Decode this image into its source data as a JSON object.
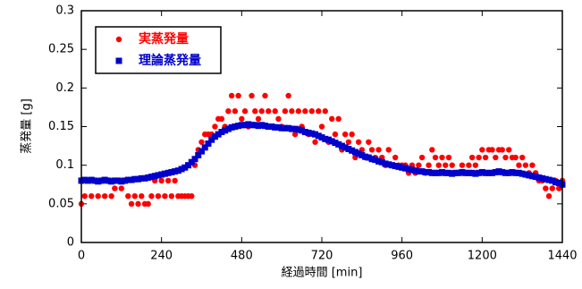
{
  "chart_data": {
    "type": "scatter",
    "x_label": "経過時間 [min]",
    "y_label": "蒸発量 [g]",
    "xlim": [
      0,
      1440
    ],
    "xticks": [
      0,
      240,
      480,
      720,
      960,
      1200,
      1440
    ],
    "ylim": [
      0,
      0.3
    ],
    "yticks": [
      0,
      0.05,
      0.1,
      0.15,
      0.2,
      0.25,
      0.3
    ],
    "legend": "upper left",
    "x": [
      0,
      10,
      20,
      30,
      40,
      50,
      60,
      70,
      80,
      90,
      100,
      110,
      120,
      130,
      140,
      150,
      160,
      170,
      180,
      190,
      200,
      210,
      220,
      230,
      240,
      250,
      260,
      270,
      280,
      290,
      300,
      310,
      320,
      330,
      340,
      350,
      360,
      370,
      380,
      390,
      400,
      410,
      420,
      430,
      440,
      450,
      460,
      470,
      480,
      490,
      500,
      510,
      520,
      530,
      540,
      550,
      560,
      570,
      580,
      590,
      600,
      610,
      620,
      630,
      640,
      650,
      660,
      670,
      680,
      690,
      700,
      710,
      720,
      730,
      740,
      750,
      760,
      770,
      780,
      790,
      800,
      810,
      820,
      830,
      840,
      850,
      860,
      870,
      880,
      890,
      900,
      910,
      920,
      930,
      940,
      950,
      960,
      970,
      980,
      990,
      1000,
      1010,
      1020,
      1030,
      1040,
      1050,
      1060,
      1070,
      1080,
      1090,
      1100,
      1110,
      1120,
      1130,
      1140,
      1150,
      1160,
      1170,
      1180,
      1190,
      1200,
      1210,
      1220,
      1230,
      1240,
      1250,
      1260,
      1270,
      1280,
      1290,
      1300,
      1310,
      1320,
      1330,
      1340,
      1350,
      1360,
      1370,
      1380,
      1390,
      1400,
      1410,
      1420,
      1430,
      1440
    ],
    "series": [
      {
        "name": "実蒸発量",
        "color": "#ff0000",
        "marker": "circle",
        "values": [
          0.05,
          0.06,
          0.08,
          0.06,
          0.08,
          0.06,
          0.08,
          0.06,
          0.08,
          0.06,
          0.07,
          0.08,
          0.07,
          0.08,
          0.06,
          0.05,
          0.06,
          0.05,
          0.06,
          0.05,
          0.05,
          0.06,
          0.08,
          0.06,
          0.08,
          0.06,
          0.08,
          0.06,
          0.08,
          0.06,
          0.06,
          0.06,
          0.06,
          0.06,
          0.1,
          0.12,
          0.13,
          0.14,
          0.14,
          0.14,
          0.15,
          0.16,
          0.16,
          0.15,
          0.17,
          0.19,
          0.17,
          0.19,
          0.16,
          0.17,
          0.15,
          0.19,
          0.17,
          0.16,
          0.17,
          0.19,
          0.17,
          0.15,
          0.17,
          0.16,
          0.15,
          0.17,
          0.19,
          0.17,
          0.14,
          0.17,
          0.15,
          0.17,
          0.14,
          0.17,
          0.13,
          0.17,
          0.15,
          0.17,
          0.13,
          0.16,
          0.14,
          0.16,
          0.12,
          0.14,
          0.13,
          0.14,
          0.11,
          0.13,
          0.12,
          0.11,
          0.13,
          0.12,
          0.11,
          0.12,
          0.11,
          0.1,
          0.12,
          0.1,
          0.11,
          0.1,
          0.1,
          0.1,
          0.09,
          0.1,
          0.09,
          0.1,
          0.11,
          0.09,
          0.1,
          0.12,
          0.11,
          0.1,
          0.11,
          0.1,
          0.11,
          0.1,
          0.09,
          0.09,
          0.1,
          0.09,
          0.1,
          0.11,
          0.1,
          0.11,
          0.12,
          0.11,
          0.12,
          0.12,
          0.11,
          0.12,
          0.12,
          0.11,
          0.12,
          0.11,
          0.11,
          0.1,
          0.11,
          0.1,
          0.09,
          0.1,
          0.09,
          0.08,
          0.08,
          0.07,
          0.06,
          0.07,
          0.08,
          0.07,
          0.08
        ]
      },
      {
        "name": "理論蒸発量",
        "color": "#0000cc",
        "marker": "square",
        "values": [
          0.08,
          0.081,
          0.08,
          0.081,
          0.08,
          0.079,
          0.08,
          0.081,
          0.08,
          0.079,
          0.08,
          0.08,
          0.079,
          0.08,
          0.081,
          0.081,
          0.082,
          0.082,
          0.083,
          0.083,
          0.084,
          0.085,
          0.086,
          0.087,
          0.088,
          0.089,
          0.09,
          0.091,
          0.092,
          0.093,
          0.095,
          0.097,
          0.1,
          0.104,
          0.108,
          0.113,
          0.118,
          0.123,
          0.128,
          0.133,
          0.137,
          0.14,
          0.143,
          0.145,
          0.147,
          0.149,
          0.15,
          0.151,
          0.152,
          0.152,
          0.153,
          0.152,
          0.152,
          0.151,
          0.152,
          0.151,
          0.15,
          0.15,
          0.149,
          0.149,
          0.148,
          0.148,
          0.148,
          0.147,
          0.147,
          0.146,
          0.145,
          0.143,
          0.142,
          0.141,
          0.14,
          0.138,
          0.136,
          0.134,
          0.133,
          0.131,
          0.129,
          0.127,
          0.125,
          0.123,
          0.121,
          0.119,
          0.117,
          0.115,
          0.113,
          0.111,
          0.11,
          0.108,
          0.107,
          0.105,
          0.104,
          0.102,
          0.101,
          0.1,
          0.099,
          0.098,
          0.097,
          0.096,
          0.095,
          0.094,
          0.093,
          0.092,
          0.092,
          0.091,
          0.091,
          0.09,
          0.09,
          0.09,
          0.091,
          0.09,
          0.09,
          0.089,
          0.09,
          0.09,
          0.091,
          0.09,
          0.09,
          0.09,
          0.089,
          0.09,
          0.091,
          0.09,
          0.09,
          0.09,
          0.091,
          0.092,
          0.091,
          0.09,
          0.09,
          0.091,
          0.09,
          0.09,
          0.089,
          0.088,
          0.087,
          0.086,
          0.085,
          0.084,
          0.083,
          0.082,
          0.081,
          0.08,
          0.078,
          0.077,
          0.075
        ]
      }
    ]
  }
}
